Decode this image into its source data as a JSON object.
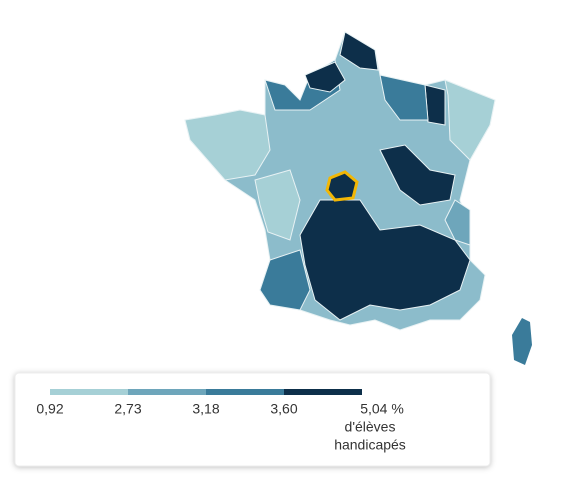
{
  "legend": {
    "colors": [
      "#a6d0d6",
      "#6ea6bb",
      "#3a7b9a",
      "#0d2f4a"
    ],
    "ticks": [
      "0,92",
      "2,73",
      "3,18",
      "3,60",
      "5,04 %"
    ],
    "caption": [
      "d'élèves",
      "handicapés"
    ]
  }
}
